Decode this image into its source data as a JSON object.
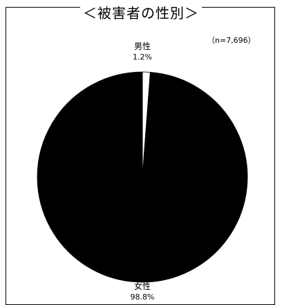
{
  "chart_data": {
    "type": "pie",
    "title": "＜被害者の性別＞",
    "note": "（n=7,696）",
    "categories": [
      "男性",
      "女性"
    ],
    "values": [
      1.2,
      98.8
    ],
    "value_labels": [
      "1.2%",
      "98.8%"
    ],
    "colors": [
      "#ffffff",
      "#000000"
    ]
  }
}
